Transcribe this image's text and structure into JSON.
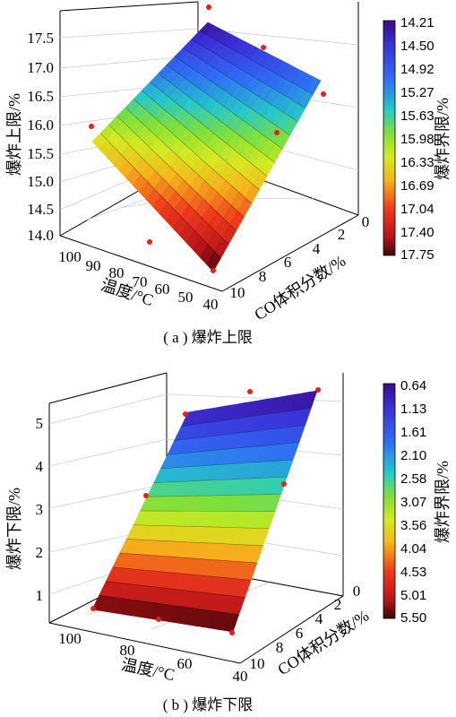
{
  "chart_data": [
    {
      "type": "surface3d",
      "caption": "( a ) 爆炸上限",
      "xlabel": "温度/°C",
      "ylabel": "CO体积分数/%",
      "zlabel": "爆炸上限/%",
      "colorbar_label": "爆炸界限/%",
      "x_ticks": [
        "100",
        "90",
        "80",
        "70",
        "60",
        "50",
        "40"
      ],
      "y_ticks": [
        "10",
        "8",
        "6",
        "4",
        "2",
        "0"
      ],
      "z_ticks": [
        "14.0",
        "14.5",
        "15.0",
        "15.5",
        "16.0",
        "16.5",
        "17.0",
        "17.5"
      ],
      "colorbar_ticks": [
        "14.21",
        "14.50",
        "14.92",
        "15.27",
        "15.63",
        "15.98",
        "16.33",
        "16.69",
        "17.04",
        "17.40",
        "17.75"
      ],
      "xlim": [
        40,
        100
      ],
      "ylim": [
        0,
        10
      ],
      "zlim": [
        14.0,
        17.7
      ],
      "colorscale": "reversed-rainbow (purple low, dark red high)",
      "surface_corners": [
        {
          "x": 100,
          "y": 10,
          "z": 15.6
        },
        {
          "x": 40,
          "y": 10,
          "z": 14.2
        },
        {
          "x": 100,
          "y": 0,
          "z": 17.7
        },
        {
          "x": 40,
          "y": 0,
          "z": 16.9
        }
      ],
      "points": [
        {
          "x": 100,
          "y": 0,
          "z": 17.8
        },
        {
          "x": 100,
          "y": 2,
          "z": 17.1
        },
        {
          "x": 100,
          "y": 10,
          "z": 16.0
        },
        {
          "x": 70,
          "y": 10,
          "z": 14.4
        },
        {
          "x": 40,
          "y": 10,
          "z": 14.1
        },
        {
          "x": 40,
          "y": 0,
          "z": 16.7
        },
        {
          "x": 55,
          "y": 2,
          "z": 16.3
        }
      ]
    },
    {
      "type": "surface3d",
      "caption": "( b ) 爆炸下限",
      "xlabel": "温度/°C",
      "ylabel": "CO体积分数/%",
      "zlabel": "爆炸下限/%",
      "colorbar_label": "爆炸界限/%",
      "x_ticks": [
        "100",
        "80",
        "60",
        "40"
      ],
      "y_ticks": [
        "10",
        "8",
        "6",
        "4",
        "2",
        "0"
      ],
      "z_ticks": [
        "1",
        "2",
        "3",
        "4",
        "5"
      ],
      "colorbar_ticks": [
        "0.64",
        "1.13",
        "1.61",
        "2.10",
        "2.58",
        "3.07",
        "3.56",
        "4.04",
        "4.53",
        "5.01",
        "5.50"
      ],
      "xlim": [
        40,
        100
      ],
      "ylim": [
        0,
        10
      ],
      "zlim": [
        0.5,
        5.5
      ],
      "colorscale": "reversed-rainbow (purple low, dark red high)",
      "surface_corners": [
        {
          "x": 100,
          "y": 10,
          "z": 0.7
        },
        {
          "x": 40,
          "y": 10,
          "z": 0.6
        },
        {
          "x": 100,
          "y": 0,
          "z": 5.2
        },
        {
          "x": 40,
          "y": 0,
          "z": 5.5
        }
      ],
      "points": [
        {
          "x": 100,
          "y": 10,
          "z": 0.7
        },
        {
          "x": 70,
          "y": 10,
          "z": 0.6
        },
        {
          "x": 40,
          "y": 10,
          "z": 0.6
        },
        {
          "x": 100,
          "y": 0,
          "z": 5.3
        },
        {
          "x": 70,
          "y": 0,
          "z": 5.4
        },
        {
          "x": 40,
          "y": 0,
          "z": 5.5
        },
        {
          "x": 100,
          "y": 6,
          "z": 3.2
        },
        {
          "x": 40,
          "y": 4,
          "z": 3.4
        }
      ]
    }
  ]
}
